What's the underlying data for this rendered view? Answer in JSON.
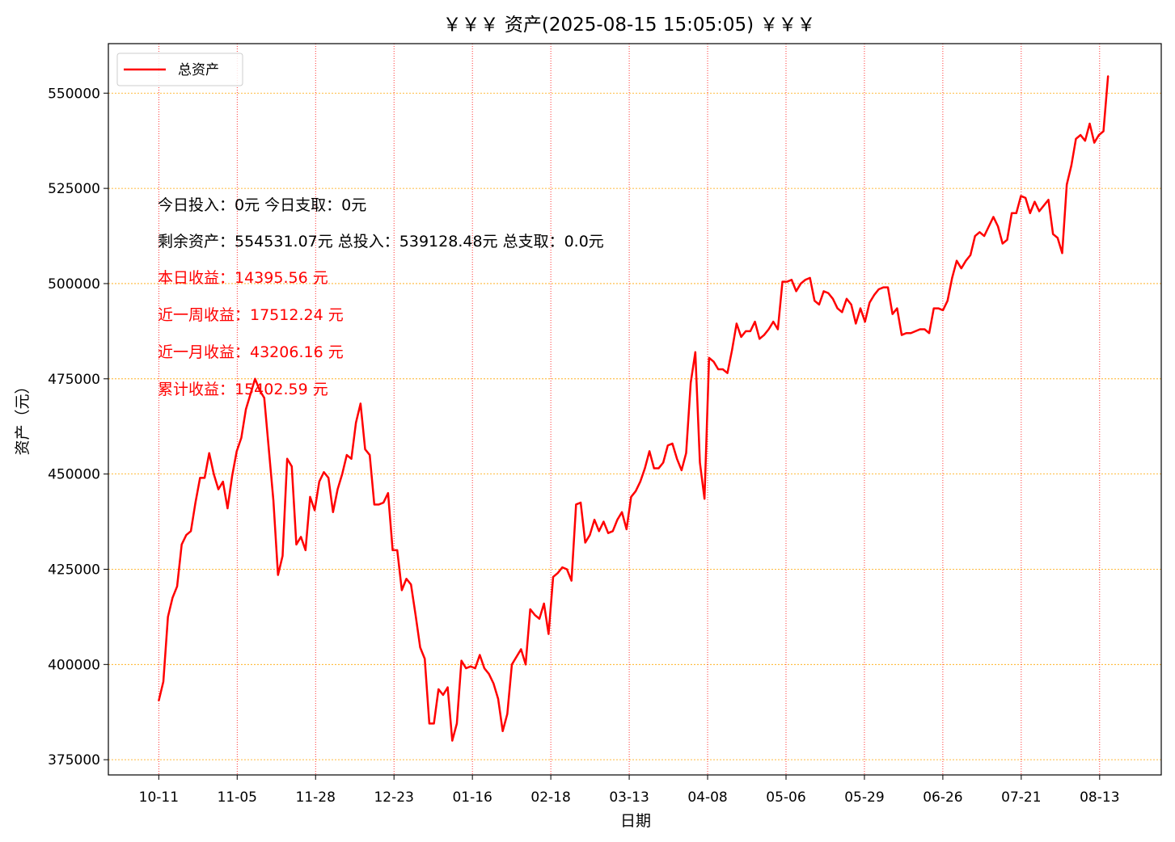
{
  "chart_data": {
    "type": "line",
    "title": "￥￥￥ 资产(2025-08-15 15:05:05) ￥￥￥",
    "xlabel": "日期",
    "ylabel": "资产（元）",
    "ylim": [
      371000,
      563000
    ],
    "yticks": [
      375000,
      400000,
      425000,
      450000,
      475000,
      500000,
      525000,
      550000
    ],
    "xtick_labels": [
      "10-11",
      "11-05",
      "11-28",
      "12-23",
      "01-16",
      "02-18",
      "03-13",
      "04-08",
      "05-06",
      "05-29",
      "06-26",
      "07-21",
      "08-13"
    ],
    "xtick_positions": [
      0,
      14,
      28,
      42,
      56,
      70,
      84,
      98,
      112,
      126,
      140,
      154,
      168
    ],
    "xlim": [
      -9,
      179
    ],
    "grid": true,
    "legend": "top-left",
    "series": [
      {
        "name": "总资产",
        "color": "#ff0000",
        "values": [
          390500,
          395500,
          412500,
          417500,
          420500,
          431500,
          434000,
          435000,
          442500,
          449000,
          449000,
          455500,
          450000,
          446000,
          448000,
          441000,
          449500,
          456000,
          459500,
          467000,
          471000,
          475000,
          472000,
          470000,
          456500,
          443000,
          423500,
          428500,
          454000,
          452000,
          431500,
          433500,
          430000,
          444000,
          440500,
          448000,
          450500,
          449000,
          440000,
          446000,
          450000,
          455000,
          454000,
          463500,
          468500,
          456500,
          455000,
          442000,
          442000,
          442500,
          445000,
          430000,
          430000,
          419500,
          422500,
          421000,
          413000,
          404500,
          401500,
          384500,
          384500,
          393500,
          392000,
          394000,
          380000,
          384500,
          401000,
          399000,
          399500,
          399000,
          402500,
          399000,
          397500,
          395000,
          391000,
          382500,
          387000,
          400000,
          402000,
          404000,
          400000,
          414500,
          413000,
          412000,
          416000,
          408000,
          423000,
          424000,
          425500,
          425000,
          422000,
          442000,
          442500,
          432000,
          434000,
          438000,
          435000,
          437500,
          434500,
          435000,
          438000,
          440000,
          435500,
          444000,
          445500,
          448000,
          451500,
          456000,
          451500,
          451500,
          453000,
          457500,
          458000,
          454000,
          451000,
          455500,
          474000,
          482000,
          453000,
          443500,
          480500,
          479500,
          477500,
          477500,
          476500,
          482500,
          489500,
          486000,
          487500,
          487500,
          490000,
          485500,
          486500,
          488000,
          490000,
          488000,
          500500,
          500500,
          501000,
          498000,
          500000,
          501000,
          501500,
          495500,
          494500,
          498000,
          497500,
          496000,
          493500,
          492500,
          496000,
          494500,
          489500,
          493500,
          490000,
          495000,
          497000,
          498500,
          499000,
          499000,
          492000,
          493500,
          486500,
          487000,
          487000,
          487500,
          488000,
          488000,
          487000,
          493500,
          493500,
          493000,
          495500,
          501500,
          506000,
          504000,
          506000,
          507500,
          512500,
          513500,
          512500,
          515000,
          517500,
          515000,
          510500,
          511500,
          518500,
          518500,
          523000,
          522500,
          518500,
          521500,
          519000,
          520500,
          522000,
          513000,
          512000,
          508000,
          526000,
          531000,
          538000,
          539000,
          537500,
          542000,
          537000,
          539000,
          540000,
          554500
        ]
      }
    ]
  },
  "annotations": {
    "line1": "今日投入：0元 今日支取：0元",
    "line2": "剩余资产：554531.07元 总投入：539128.48元  总支取：0.0元",
    "line3": "本日收益：14395.56 元",
    "line4": "近一周收益：17512.24 元",
    "line5": "近一月收益：43206.16 元",
    "line6": "累计收益：15402.59 元"
  },
  "colors": {
    "line": "#ff0000",
    "vertical_grid": "#ff0000",
    "horizontal_grid": "#ffa500",
    "normal_text": "#000000",
    "highlight_text": "#ff0000"
  }
}
